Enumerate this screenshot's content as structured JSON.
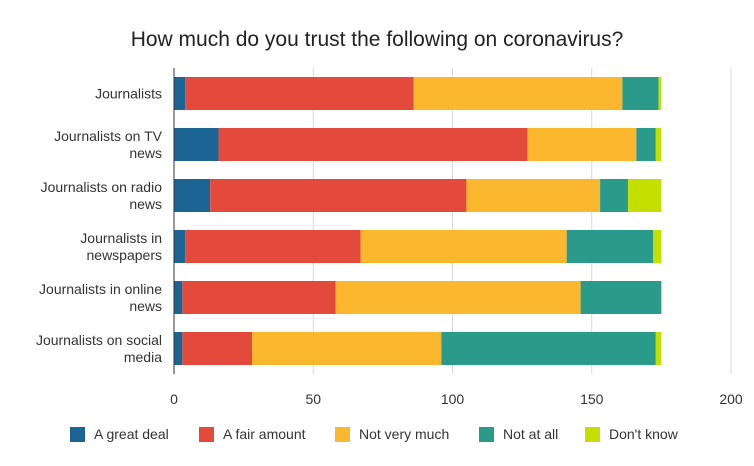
{
  "chart_data": {
    "type": "bar",
    "orientation": "horizontal",
    "stacked": true,
    "title": "How much do you trust the following on coronavirus?",
    "categories": [
      "Journalists",
      "Journalists on TV news",
      "Journalists on radio news",
      "Journalists in newspapers",
      "Journalists in online news",
      "Journalists on social media"
    ],
    "category_lines": [
      [
        "Journalists"
      ],
      [
        "Journalists on TV",
        "news"
      ],
      [
        "Journalists on radio",
        "news"
      ],
      [
        "Journalists in",
        "newspapers"
      ],
      [
        "Journalists in online",
        "news"
      ],
      [
        "Journalists on social",
        "media"
      ]
    ],
    "series": [
      {
        "name": "A great deal",
        "color": "#1b6494",
        "values": [
          4,
          16,
          13,
          4,
          3,
          3
        ]
      },
      {
        "name": "A fair amount",
        "color": "#e34a3b",
        "values": [
          82,
          111,
          92,
          63,
          55,
          25
        ]
      },
      {
        "name": "Not very much",
        "color": "#fbb72d",
        "values": [
          75,
          39,
          48,
          74,
          88,
          68
        ]
      },
      {
        "name": "Not at all",
        "color": "#2a9a8a",
        "values": [
          13,
          7,
          10,
          31,
          29,
          77
        ]
      },
      {
        "name": "Don't know",
        "color": "#c4de00",
        "values": [
          1,
          2,
          12,
          3,
          0,
          2
        ]
      }
    ],
    "xlim": [
      0,
      200
    ],
    "xticks": [
      0,
      50,
      100,
      150,
      200
    ],
    "xlabel": "",
    "ylabel": "",
    "grid": "vertical",
    "legend_position": "bottom"
  }
}
